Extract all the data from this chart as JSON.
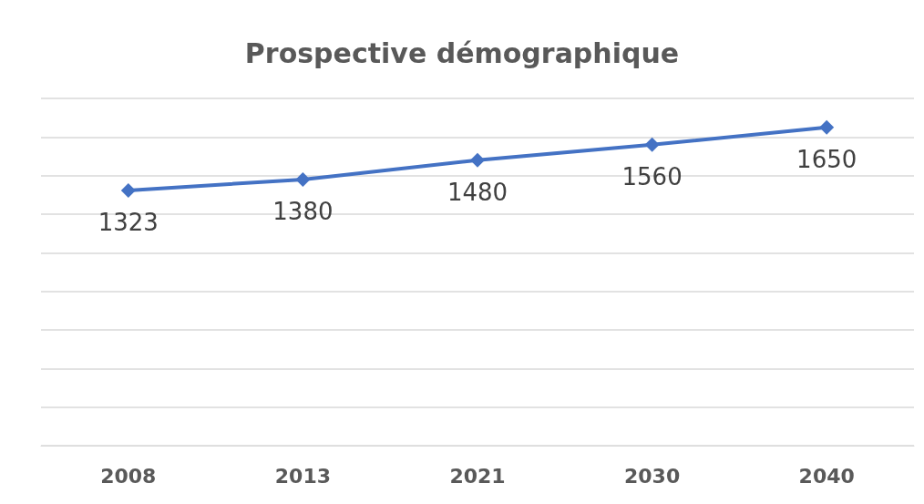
{
  "chart_data": {
    "type": "line",
    "title": "Prospective démographique",
    "categories": [
      "2008",
      "2013",
      "2021",
      "2030",
      "2040"
    ],
    "series": [
      {
        "color": "#4472c4",
        "values": [
          1323,
          1380,
          1480,
          1560,
          1650
        ]
      }
    ],
    "ylim": [
      0,
      1800
    ],
    "yticks": [
      {
        "value": 0,
        "label": null
      },
      {
        "value": 200,
        "label": null
      },
      {
        "value": 400,
        "label": null
      },
      {
        "value": 600,
        "label": null
      },
      {
        "value": 800,
        "label": null
      },
      {
        "value": 1000,
        "label": null
      },
      {
        "value": 1200,
        "label": null
      },
      {
        "value": 1400,
        "label": null
      },
      {
        "value": 1600,
        "label": null
      },
      {
        "value": 1800,
        "label": null
      }
    ],
    "grid": "y",
    "tick_labels": "x",
    "marker": "diamond",
    "line_style": "solid",
    "data_labels": true
  }
}
